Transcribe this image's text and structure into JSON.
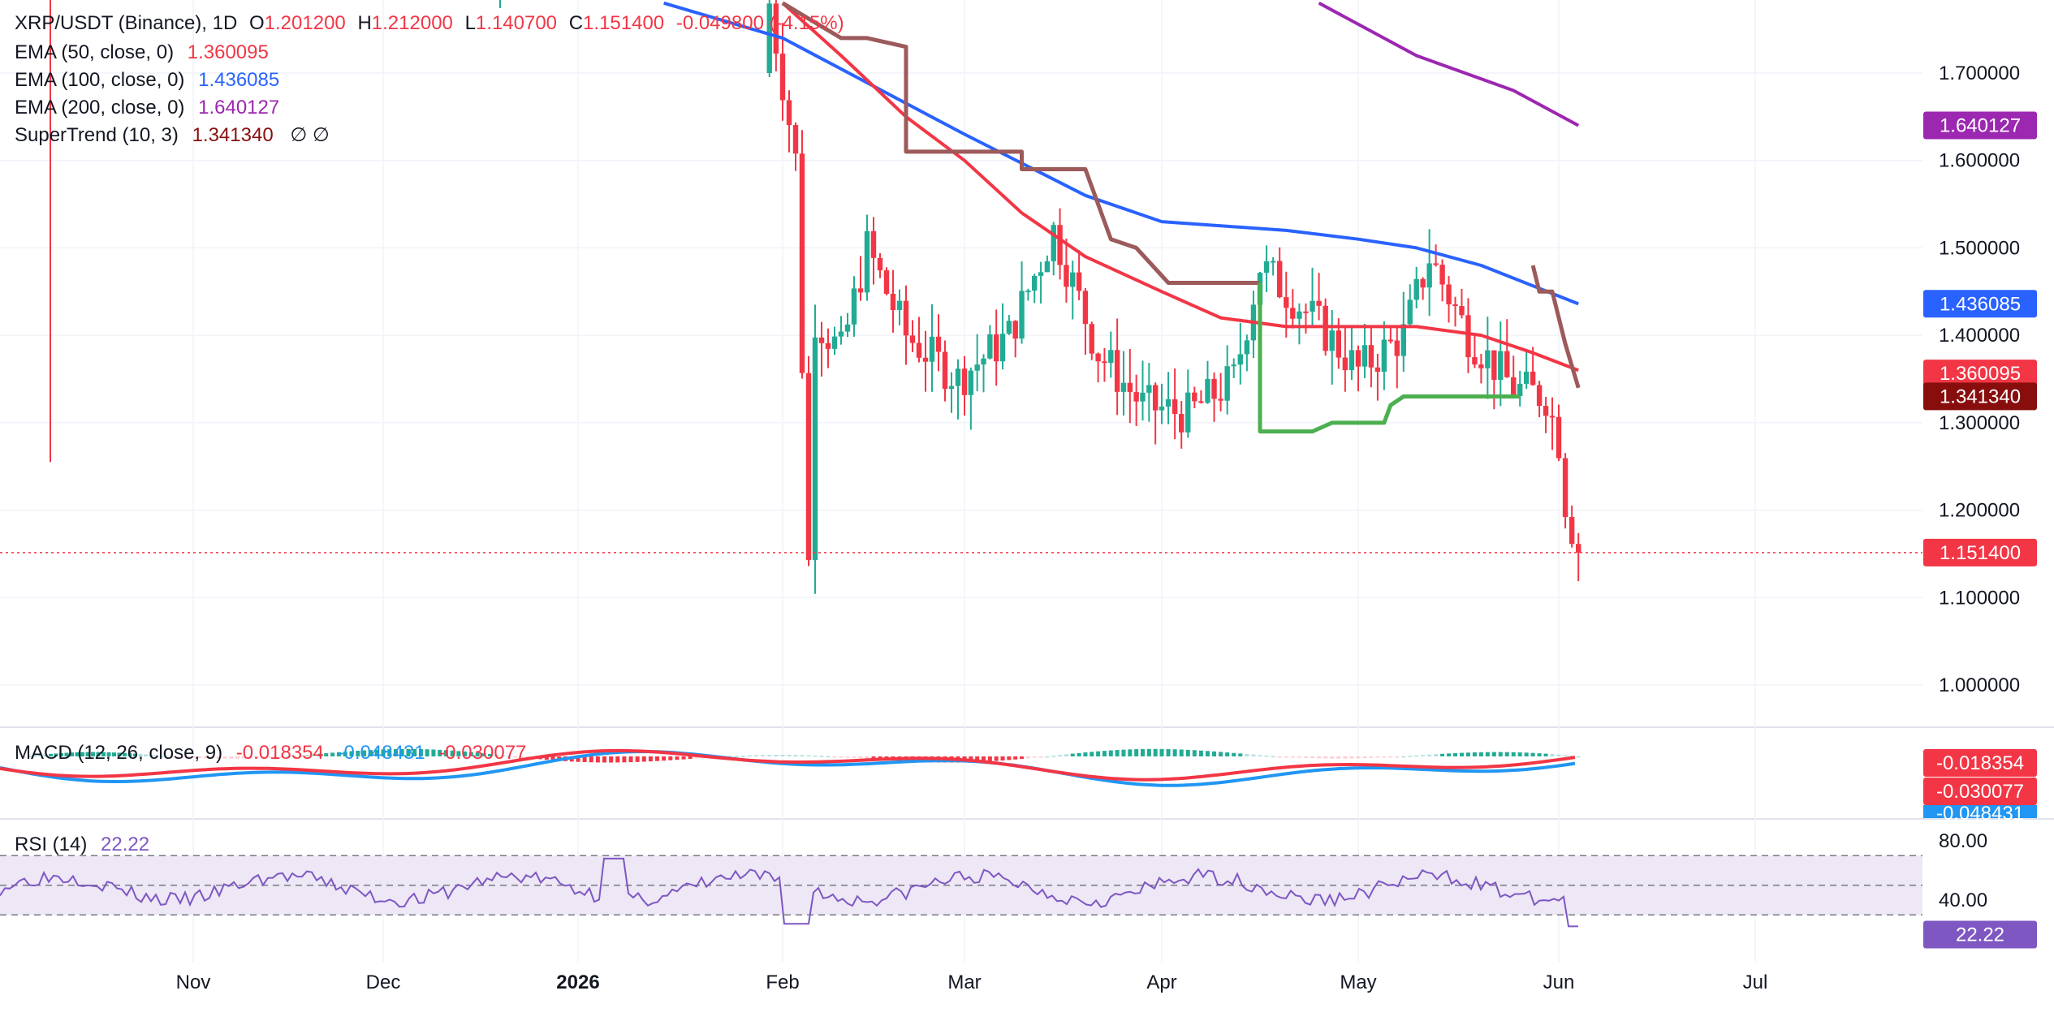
{
  "colors": {
    "up": "#22ab94",
    "down": "#f23645",
    "ema50": "#f23645",
    "ema100": "#2962ff",
    "ema200": "#9c27b0",
    "supertrend_up": "#4caf50",
    "supertrend_down": "#9c5a5a",
    "supertrend_label": "#880e0e",
    "macd": "#2196f3",
    "signal": "#f23645",
    "rsi": "#7e57c2",
    "rsi_band": "#ede7f6",
    "grid": "#f0f3fa",
    "text": "#131722"
  },
  "legend": {
    "symbol": "XRP/USDT (Binance), 1D",
    "open_k": "O",
    "open": "1.201200",
    "high_k": "H",
    "high": "1.212000",
    "low_k": "L",
    "low": "1.140700",
    "close_k": "C",
    "close": "1.151400",
    "change": "-0.049800",
    "change_pct": "(-4.15%)",
    "ema50_label": "EMA (50, close, 0)",
    "ema50_value": "1.360095",
    "ema100_label": "EMA (100, close, 0)",
    "ema100_value": "1.436085",
    "ema200_label": "EMA (200, close, 0)",
    "ema200_value": "1.640127",
    "st_label": "SuperTrend (10, 3)",
    "st_value": "1.341340",
    "st_glyph": "∅  ∅",
    "macd_label": "MACD (12, 26, close, 9)",
    "macd_hist": "-0.018354",
    "macd_line": "-0.048431",
    "macd_signal": "-0.030077",
    "rsi_label": "RSI (14)",
    "rsi_value": "22.22"
  },
  "chart_data": [
    {
      "type": "candlestick",
      "series": [
        {
          "name": "EMA (50, close, 0)",
          "last": 1.360095
        },
        {
          "name": "EMA (100, close, 0)",
          "last": 1.436085
        },
        {
          "name": "EMA (200, close, 0)",
          "last": 1.640127
        },
        {
          "name": "SuperTrend (10, 3)",
          "last": 1.34134
        }
      ],
      "ylim": [
        0.95,
        1.78
      ],
      "y_ticks": [
        "1.700000",
        "1.600000",
        "1.500000",
        "1.400000",
        "1.300000",
        "1.200000",
        "1.100000",
        "1.000000"
      ],
      "last_price": 1.1514,
      "price_labels": [
        "1.640127",
        "1.436085",
        "1.360095",
        "1.341340",
        "1.151400"
      ],
      "x_ticks": [
        "Nov",
        "Dec",
        "2026",
        "Feb",
        "Mar",
        "Apr",
        "May",
        "Jun",
        "Jul"
      ],
      "ohlc_shape": [
        [
          0.2,
          0.0,
          0.0,
          0.0
        ],
        [
          1.0,
          1.0,
          1.0,
          1.0
        ]
      ],
      "ema50_x": [
        "2026-02-01",
        "2026-02-10",
        "2026-02-20",
        "2026-03-01",
        "2026-03-10",
        "2026-03-20",
        "2026-04-01",
        "2026-04-10",
        "2026-04-20",
        "2026-05-01",
        "2026-05-10",
        "2026-05-20",
        "2026-05-28",
        "2026-06-04"
      ],
      "ema50": [
        1.78,
        1.72,
        1.65,
        1.6,
        1.54,
        1.49,
        1.45,
        1.42,
        1.41,
        1.41,
        1.41,
        1.4,
        1.38,
        1.36
      ],
      "ema100_x": [
        "2026-01-14",
        "2026-02-01",
        "2026-03-01",
        "2026-03-20",
        "2026-04-01",
        "2026-04-20",
        "2026-05-01",
        "2026-05-10",
        "2026-05-20",
        "2026-06-04"
      ],
      "ema100": [
        1.78,
        1.74,
        1.63,
        1.56,
        1.53,
        1.52,
        1.51,
        1.5,
        1.48,
        1.436
      ],
      "ema200_x": [
        "2026-04-25",
        "2026-05-10",
        "2026-05-25",
        "2026-06-04"
      ],
      "ema200": [
        1.78,
        1.72,
        1.68,
        1.64
      ],
      "supertrend_down_x": [
        "2026-02-01",
        "2026-02-10",
        "2026-02-14",
        "2026-02-20",
        "2026-02-20",
        "2026-03-10",
        "2026-03-10",
        "2026-03-20",
        "2026-03-24",
        "2026-03-28",
        "2026-04-02",
        "2026-04-06",
        "2026-04-16"
      ],
      "supertrend_down": [
        1.78,
        1.74,
        1.74,
        1.73,
        1.61,
        1.61,
        1.59,
        1.59,
        1.51,
        1.5,
        1.46,
        1.46,
        1.46
      ],
      "supertrend_up_x": [
        "2026-04-16",
        "2026-04-16",
        "2026-04-24",
        "2026-04-27",
        "2026-05-05",
        "2026-05-06",
        "2026-05-08",
        "2026-05-12",
        "2026-05-26"
      ],
      "supertrend_up": [
        1.46,
        1.29,
        1.29,
        1.3,
        1.3,
        1.32,
        1.33,
        1.33,
        1.33
      ],
      "supertrend_down2_x": [
        "2026-05-28",
        "2026-05-29",
        "2026-05-31",
        "2026-06-02",
        "2026-06-04"
      ],
      "supertrend_down2": [
        1.48,
        1.45,
        1.45,
        1.39,
        1.34
      ]
    },
    {
      "type": "bar",
      "name": "MACD (12, 26, close, 9)",
      "values_last": {
        "histogram": -0.018354,
        "macd": -0.048431,
        "signal": -0.030077
      },
      "price_labels": [
        "-0.018354",
        "-0.030077",
        "-0.048431"
      ]
    },
    {
      "type": "line",
      "name": "RSI (14)",
      "last": 22.22,
      "ylim": [
        15,
        85
      ],
      "y_ticks": [
        "80.00",
        "40.00"
      ],
      "price_labels": [
        "22.22"
      ],
      "bands": [
        70,
        50,
        30
      ]
    }
  ]
}
